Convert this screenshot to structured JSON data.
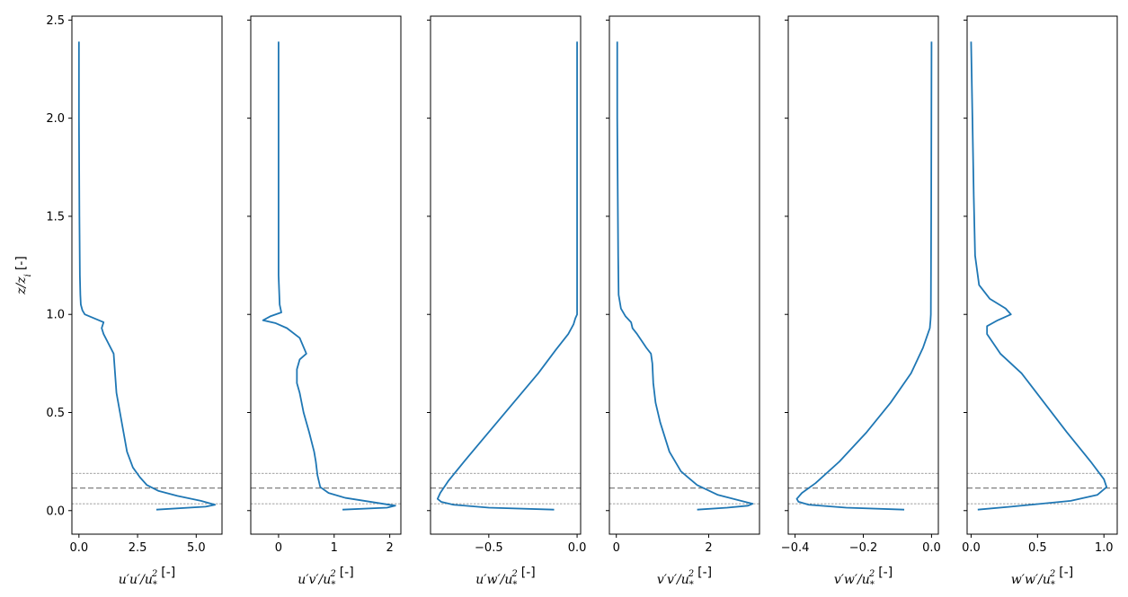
{
  "chart_data": {
    "type": "line",
    "ylabel": "z/z_i [-]",
    "ylim": [
      -0.12,
      2.52
    ],
    "yticks": [
      0.0,
      0.5,
      1.0,
      1.5,
      2.0,
      2.5
    ],
    "ytick_labels": [
      "0.0",
      "0.5",
      "1.0",
      "1.5",
      "2.0",
      "2.5"
    ],
    "reference_lines": [
      {
        "y": 0.035,
        "style": "dotted"
      },
      {
        "y": 0.115,
        "style": "dashed"
      },
      {
        "y": 0.19,
        "style": "dotted"
      }
    ],
    "line_color": "#1f77b4",
    "reference_color": "#808080",
    "panels": [
      {
        "xlabel": "u′u′/u*² [-]",
        "xlim": [
          -0.3,
          6.1
        ],
        "xticks": [
          0.0,
          2.5,
          5.0
        ],
        "xtick_labels": [
          "0.0",
          "2.5",
          "5.0"
        ],
        "x": [
          3.3,
          5.4,
          5.8,
          5.2,
          4.2,
          3.4,
          2.9,
          2.6,
          2.3,
          2.05,
          1.9,
          1.75,
          1.6,
          1.48,
          1.05,
          0.97,
          1.05,
          0.65,
          0.25,
          0.15,
          0.08,
          0.06,
          0.04,
          0.02,
          0.0,
          0.0
        ],
        "y": [
          0.005,
          0.02,
          0.03,
          0.05,
          0.075,
          0.1,
          0.13,
          0.17,
          0.22,
          0.3,
          0.4,
          0.5,
          0.6,
          0.8,
          0.9,
          0.93,
          0.96,
          0.98,
          1.0,
          1.02,
          1.05,
          1.1,
          1.2,
          1.5,
          2.0,
          2.39
        ]
      },
      {
        "xlabel": "u′v′/u*² [-]",
        "xlim": [
          -0.5,
          2.2
        ],
        "xticks": [
          0,
          1,
          2
        ],
        "xtick_labels": [
          "0",
          "1",
          "2"
        ],
        "x": [
          1.15,
          1.95,
          2.1,
          1.65,
          1.2,
          0.9,
          0.75,
          0.7,
          0.67,
          0.64,
          0.55,
          0.45,
          0.38,
          0.33,
          0.33,
          0.38,
          0.5,
          0.38,
          0.15,
          -0.05,
          -0.28,
          -0.15,
          0.05,
          0.02,
          0.0,
          0.0,
          0.0
        ],
        "y": [
          0.005,
          0.015,
          0.025,
          0.045,
          0.065,
          0.09,
          0.12,
          0.18,
          0.25,
          0.3,
          0.4,
          0.5,
          0.6,
          0.65,
          0.72,
          0.77,
          0.8,
          0.88,
          0.93,
          0.955,
          0.97,
          0.99,
          1.01,
          1.05,
          1.2,
          1.8,
          2.39
        ]
      },
      {
        "xlabel": "u′w′/u*² [-]",
        "xlim": [
          -0.83,
          0.02
        ],
        "xticks": [
          -0.5,
          0.0
        ],
        "xtick_labels": [
          "−0.5",
          "0.0"
        ],
        "x": [
          -0.13,
          -0.5,
          -0.7,
          -0.77,
          -0.79,
          -0.775,
          -0.73,
          -0.64,
          -0.5,
          -0.36,
          -0.22,
          -0.12,
          -0.05,
          -0.02,
          -0.01,
          0.0,
          0.0,
          0.0
        ],
        "y": [
          0.005,
          0.015,
          0.03,
          0.045,
          0.06,
          0.09,
          0.15,
          0.25,
          0.4,
          0.55,
          0.7,
          0.82,
          0.9,
          0.95,
          0.98,
          1.0,
          1.5,
          2.39
        ]
      },
      {
        "xlabel": "v′v′/u*² [-]",
        "xlim": [
          -0.15,
          3.1
        ],
        "xticks": [
          0,
          2
        ],
        "xtick_labels": [
          "0",
          "2"
        ],
        "x": [
          1.75,
          2.4,
          2.85,
          2.95,
          2.7,
          2.2,
          1.75,
          1.4,
          1.15,
          0.95,
          0.85,
          0.8,
          0.78,
          0.75,
          0.65,
          0.45,
          0.35,
          0.32,
          0.2,
          0.1,
          0.05,
          0.04,
          0.02,
          0.02
        ],
        "y": [
          0.005,
          0.015,
          0.025,
          0.035,
          0.05,
          0.08,
          0.13,
          0.2,
          0.3,
          0.45,
          0.55,
          0.65,
          0.75,
          0.8,
          0.83,
          0.9,
          0.93,
          0.96,
          0.99,
          1.03,
          1.1,
          1.3,
          2.0,
          2.39
        ]
      },
      {
        "xlabel": "v′w′/u*² [-]",
        "xlim": [
          -0.42,
          0.02
        ],
        "xticks": [
          -0.4,
          -0.2,
          0.0
        ],
        "xtick_labels": [
          "−0.4",
          "−0.2",
          "0.0"
        ],
        "x": [
          -0.08,
          -0.25,
          -0.36,
          -0.39,
          -0.395,
          -0.38,
          -0.34,
          -0.27,
          -0.19,
          -0.12,
          -0.06,
          -0.025,
          -0.005,
          -0.003,
          -0.002,
          -0.001,
          0.0
        ],
        "y": [
          0.005,
          0.015,
          0.03,
          0.045,
          0.06,
          0.09,
          0.14,
          0.25,
          0.4,
          0.55,
          0.7,
          0.83,
          0.93,
          0.97,
          1.0,
          1.5,
          2.39
        ]
      },
      {
        "xlabel": "w′w′/u*² [-]",
        "xlim": [
          -0.03,
          1.1
        ],
        "xticks": [
          0.0,
          0.5,
          1.0
        ],
        "xtick_labels": [
          "0.0",
          "0.5",
          "1.0"
        ],
        "x": [
          0.05,
          0.3,
          0.75,
          0.95,
          1.02,
          1.0,
          0.9,
          0.72,
          0.55,
          0.38,
          0.22,
          0.12,
          0.12,
          0.2,
          0.3,
          0.26,
          0.14,
          0.06,
          0.03,
          0.02,
          0.01,
          0.0
        ],
        "y": [
          0.005,
          0.02,
          0.05,
          0.08,
          0.12,
          0.16,
          0.25,
          0.4,
          0.55,
          0.7,
          0.8,
          0.9,
          0.94,
          0.97,
          1.0,
          1.03,
          1.08,
          1.15,
          1.3,
          1.6,
          2.0,
          2.39
        ]
      }
    ]
  }
}
